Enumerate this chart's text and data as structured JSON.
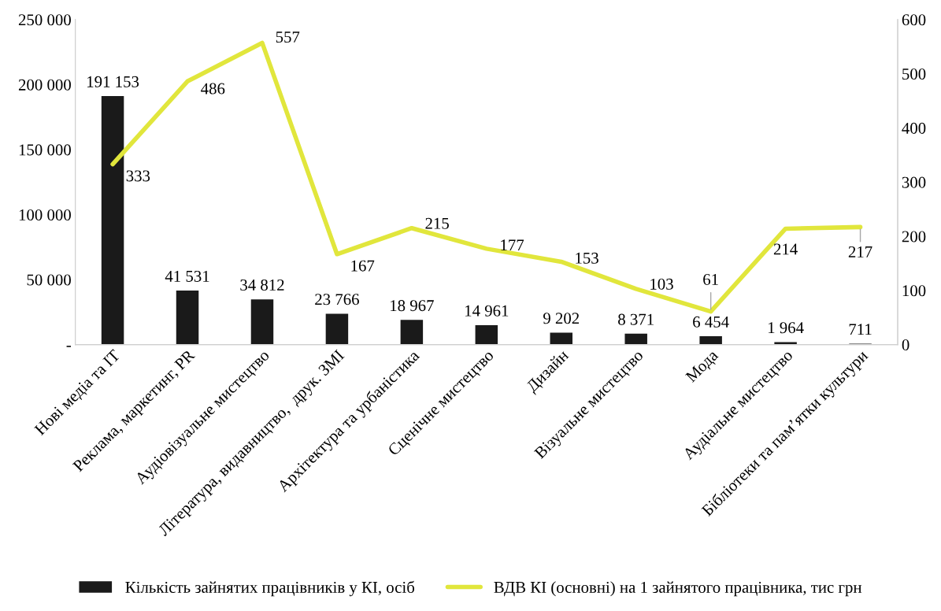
{
  "chart_data": {
    "type": "bar",
    "categories": [
      "Нові медіа та ІТ",
      "Реклама, маркетинг, PR",
      "Аудіовізуальне мистецтво",
      "Література, видавництво,  друк. ЗМІ",
      "Архітектура та урбаністика",
      "Сценічне мистецтво",
      "Дизайн",
      "Візуальне мистецтво",
      "Мода",
      "Аудіальне мистецтво",
      "Бібліотеки та пам’ятки культури"
    ],
    "series": [
      {
        "name": "Кількість зайнятих працівників у КІ, осіб",
        "color": "#1a1a1a",
        "values": [
          191153,
          41531,
          34812,
          23766,
          18967,
          14961,
          9202,
          8371,
          6454,
          1964,
          711
        ],
        "value_labels": [
          "191 153",
          "41 531",
          "34 812",
          "23 766",
          "18 967",
          "14 961",
          "9 202",
          "8 371",
          "6 454",
          "1 964",
          "711"
        ]
      },
      {
        "name": "ВДВ КІ (основні) на 1 зайнятого працівника, тис грн",
        "type": "line",
        "axis": "y2",
        "color": "#e1e63c",
        "values": [
          333,
          486,
          557,
          167,
          215,
          177,
          153,
          103,
          61,
          214,
          217
        ],
        "value_labels": [
          "333",
          "486",
          "557",
          "167",
          "215",
          "177",
          "153",
          "103",
          "61",
          "214",
          "217"
        ]
      }
    ],
    "ylim": [
      0,
      250000
    ],
    "yticks": [
      {
        "value": 0,
        "label": "-"
      },
      {
        "value": 50000,
        "label": "50 000"
      },
      {
        "value": 100000,
        "label": "100 000"
      },
      {
        "value": 150000,
        "label": "150 000"
      },
      {
        "value": 200000,
        "label": "200 000"
      },
      {
        "value": 250000,
        "label": "250 000"
      }
    ],
    "y2lim": [
      0,
      600
    ],
    "y2ticks": [
      0,
      100,
      200,
      300,
      400,
      500,
      600
    ],
    "grid": false,
    "legend": "bottom",
    "marker": "none",
    "line_style": "solid"
  }
}
